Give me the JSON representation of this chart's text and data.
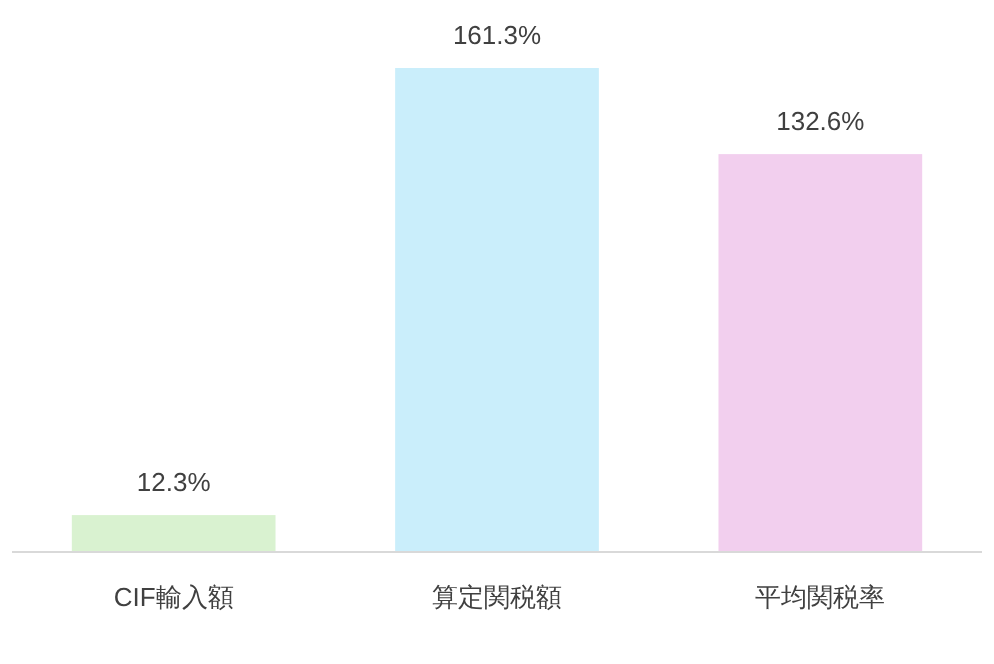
{
  "chart_data": {
    "type": "bar",
    "categories": [
      "CIF輸入額",
      "算定関税額",
      "平均関税率"
    ],
    "values": [
      12.3,
      161.3,
      132.6
    ],
    "colors": [
      "#d9f2d0",
      "#caeefb",
      "#f2cfee"
    ],
    "value_labels": [
      "12.3%",
      "161.3%",
      "132.6%"
    ]
  }
}
